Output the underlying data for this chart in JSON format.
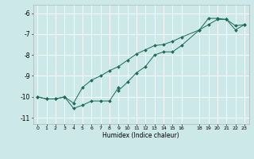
{
  "xlabel": "Humidex (Indice chaleur)",
  "bg_color": "#cce8e8",
  "grid_color": "#ffffff",
  "line_color": "#1a6b5a",
  "xlim": [
    -0.5,
    23.5
  ],
  "ylim": [
    -11.3,
    -5.6
  ],
  "yticks": [
    -11,
    -10,
    -9,
    -8,
    -7,
    -6
  ],
  "xticks": [
    0,
    1,
    2,
    3,
    4,
    5,
    6,
    7,
    8,
    9,
    10,
    11,
    12,
    13,
    14,
    15,
    16,
    18,
    19,
    20,
    21,
    22,
    23
  ],
  "xtick_labels": [
    "0",
    "1",
    "2",
    "3",
    "4",
    "5",
    "6",
    "7",
    "8",
    "9",
    "10",
    "11",
    "12",
    "13",
    "14",
    "15",
    "16",
    "18",
    "19",
    "20",
    "21",
    "22",
    "23"
  ],
  "line1_x": [
    0,
    1,
    2,
    3,
    4,
    5,
    6,
    7,
    8,
    9,
    9,
    10,
    11,
    12,
    13,
    14,
    15,
    16,
    18,
    19,
    20,
    21,
    22,
    23
  ],
  "line1_y": [
    -10.0,
    -10.1,
    -10.1,
    -10.0,
    -10.55,
    -10.4,
    -10.2,
    -10.2,
    -10.2,
    -9.55,
    -9.7,
    -9.3,
    -8.85,
    -8.55,
    -8.0,
    -7.85,
    -7.85,
    -7.55,
    -6.8,
    -6.25,
    -6.25,
    -6.3,
    -6.8,
    -6.55
  ],
  "line2_x": [
    0,
    1,
    2,
    3,
    4,
    5,
    6,
    7,
    8,
    9,
    10,
    11,
    12,
    13,
    14,
    15,
    16,
    18,
    19,
    20,
    21,
    22,
    23
  ],
  "line2_y": [
    -10.0,
    -10.1,
    -10.1,
    -10.0,
    -10.3,
    -9.55,
    -9.2,
    -9.0,
    -8.75,
    -8.55,
    -8.25,
    -7.95,
    -7.75,
    -7.55,
    -7.5,
    -7.35,
    -7.15,
    -6.8,
    -6.55,
    -6.3,
    -6.3,
    -6.6,
    -6.55
  ]
}
